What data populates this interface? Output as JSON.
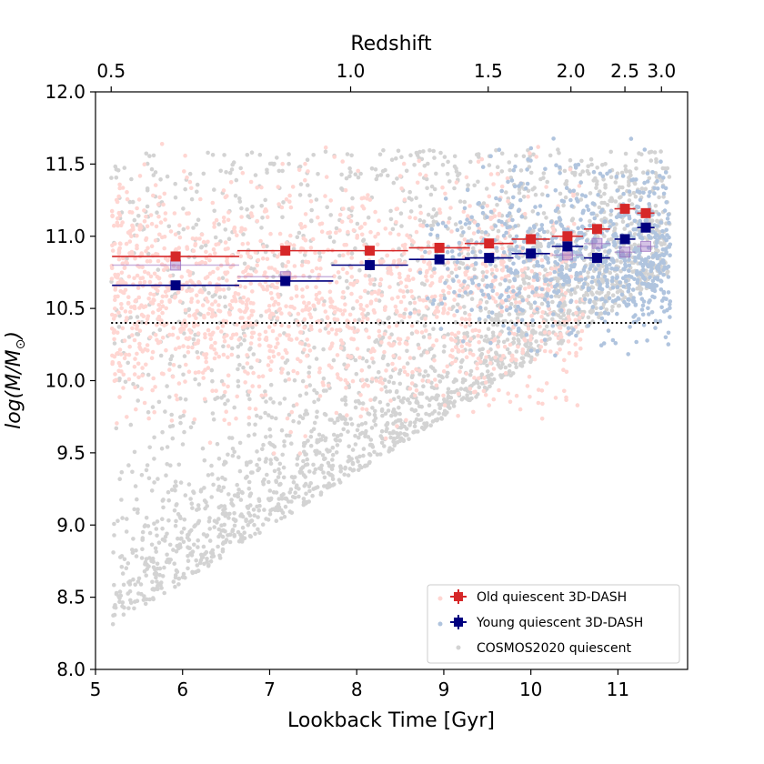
{
  "chart_data": {
    "type": "scatter",
    "title": "",
    "xlabel": "Lookback Time [Gyr]",
    "ylabel": "log(M/M⊙)",
    "ylabel_parts": {
      "base": "log(",
      "m": "M",
      "slash": "/",
      "msun": "M",
      "sun_sub": "⊙",
      "close": ")"
    },
    "top_xlabel": "Redshift",
    "xlim": [
      5.0,
      11.8
    ],
    "ylim": [
      8.0,
      12.0
    ],
    "x_ticks": [
      5,
      6,
      7,
      8,
      9,
      10,
      11
    ],
    "x_tick_labels": [
      "5",
      "6",
      "7",
      "8",
      "9",
      "10",
      "11"
    ],
    "y_ticks": [
      8.0,
      8.5,
      9.0,
      9.5,
      10.0,
      10.5,
      11.0,
      11.5,
      12.0
    ],
    "y_tick_labels": [
      "8.0",
      "8.5",
      "9.0",
      "9.5",
      "10.0",
      "10.5",
      "11.0",
      "11.5",
      "12.0"
    ],
    "top_ticks": [
      {
        "lookback": 5.18,
        "label": "0.5"
      },
      {
        "lookback": 7.93,
        "label": "1.0"
      },
      {
        "lookback": 9.51,
        "label": "1.5"
      },
      {
        "lookback": 10.46,
        "label": "2.0"
      },
      {
        "lookback": 11.08,
        "label": "2.5"
      },
      {
        "lookback": 11.5,
        "label": "3.0"
      }
    ],
    "mass_limit": 10.4,
    "mass_limit_range": [
      5.18,
      11.5
    ],
    "grid": false,
    "legend_position": "lower-right",
    "legend": [
      {
        "label": "Old quiescent 3D-DASH",
        "color": "#d62728"
      },
      {
        "label": "Young quiescent 3D-DASH",
        "color": "#00007f"
      },
      {
        "label": "COSMOS2020 quiescent",
        "color": "#d3d3d3"
      }
    ],
    "series": [
      {
        "name": "Old quiescent 3D-DASH",
        "color": "#d62728",
        "x": [
          5.92,
          7.18,
          8.15,
          8.95,
          9.52,
          10.0,
          10.42,
          10.76,
          11.08,
          11.32
        ],
        "y": [
          10.86,
          10.9,
          10.9,
          10.92,
          10.95,
          10.98,
          11.0,
          11.05,
          11.19,
          11.16
        ],
        "xerr_low": [
          0.73,
          0.55,
          0.44,
          0.35,
          0.28,
          0.22,
          0.18,
          0.15,
          0.12,
          0.1
        ],
        "xerr_high": [
          0.73,
          0.55,
          0.44,
          0.35,
          0.28,
          0.22,
          0.18,
          0.15,
          0.12,
          0.1
        ]
      },
      {
        "name": "Young quiescent 3D-DASH",
        "color": "#00007f",
        "x": [
          5.92,
          7.18,
          8.15,
          8.95,
          9.52,
          10.0,
          10.42,
          10.76,
          11.08,
          11.32
        ],
        "y": [
          10.66,
          10.69,
          10.8,
          10.84,
          10.85,
          10.88,
          10.93,
          10.85,
          10.98,
          11.06
        ],
        "xerr_low": [
          0.73,
          0.55,
          0.44,
          0.35,
          0.28,
          0.22,
          0.18,
          0.15,
          0.12,
          0.1
        ],
        "xerr_high": [
          0.73,
          0.55,
          0.44,
          0.35,
          0.28,
          0.22,
          0.18,
          0.15,
          0.12,
          0.1
        ]
      },
      {
        "name": "",
        "color": "#9467bd",
        "x": [
          5.92,
          7.18,
          10.42,
          10.76,
          11.08,
          11.32
        ],
        "y": [
          10.8,
          10.72,
          10.87,
          10.95,
          10.89,
          10.93
        ],
        "xerr_low": [
          0.73,
          0.55,
          0.18,
          0.15,
          0.12,
          0.1
        ],
        "xerr_high": [
          0.73,
          0.55,
          0.18,
          0.15,
          0.12,
          0.1
        ]
      }
    ],
    "scatter_populations": [
      {
        "name": "COSMOS2020 quiescent",
        "color": "#d3d3d3",
        "x_range": [
          5.18,
          11.6
        ],
        "y_range": [
          8.2,
          11.9
        ],
        "count": 2600
      },
      {
        "name": "Old quiescent 3D-DASH",
        "color": "#ffd6d2",
        "x_range": [
          5.18,
          10.6
        ],
        "y_range": [
          9.4,
          11.8
        ],
        "count": 1600
      },
      {
        "name": "Young quiescent 3D-DASH",
        "color": "#b0c4de",
        "x_range": [
          8.6,
          11.6
        ],
        "y_range": [
          9.6,
          11.7
        ],
        "count": 800
      }
    ]
  }
}
